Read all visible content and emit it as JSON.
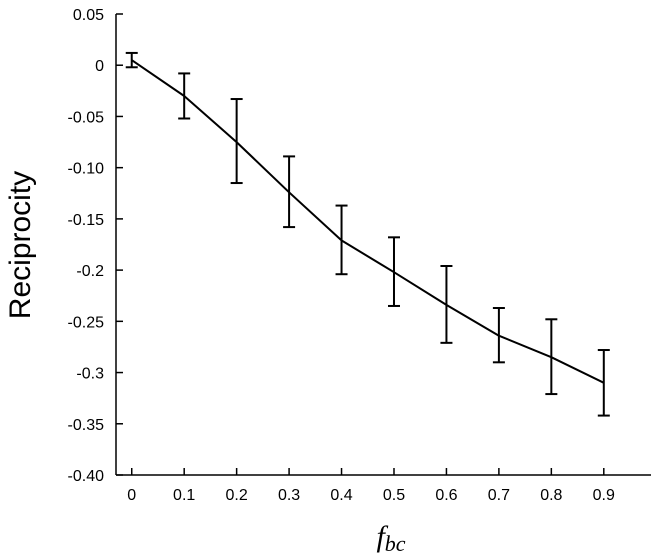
{
  "chart_data": {
    "type": "line",
    "xlabel_main": "f",
    "xlabel_sub": "bc",
    "ylabel": "Reciprocity",
    "x": [
      0,
      0.1,
      0.2,
      0.3,
      0.4,
      0.5,
      0.6,
      0.7,
      0.8,
      0.9
    ],
    "series": [
      {
        "values": [
          0.005,
          -0.03,
          -0.075,
          -0.124,
          -0.171,
          -0.202,
          -0.234,
          -0.264,
          -0.285,
          -0.31
        ],
        "error_low": [
          -0.002,
          -0.052,
          -0.115,
          -0.158,
          -0.204,
          -0.235,
          -0.271,
          -0.29,
          -0.321,
          -0.342
        ],
        "error_high": [
          0.012,
          -0.008,
          -0.033,
          -0.089,
          -0.137,
          -0.168,
          -0.196,
          -0.237,
          -0.248,
          -0.278
        ],
        "color": "#000000"
      }
    ],
    "xlim": [
      -0.03,
      0.99
    ],
    "ylim": [
      -0.4,
      0.05
    ],
    "xticks": [
      0,
      0.1,
      0.2,
      0.3,
      0.4,
      0.5,
      0.6,
      0.7,
      0.8,
      0.9
    ],
    "xtick_labels": [
      "0",
      "0.1",
      "0.2",
      "0.3",
      "0.4",
      "0.5",
      "0.6",
      "0.7",
      "0.8",
      "0.9"
    ],
    "yticks": [
      0.05,
      0,
      -0.05,
      -0.1,
      -0.15,
      -0.2,
      -0.25,
      -0.3,
      -0.35,
      -0.4
    ],
    "ytick_labels": [
      "0.05",
      "0",
      "-0.05",
      "-0.10",
      "-0.15",
      "-0.2",
      "-0.25",
      "-0.3",
      "-0.35",
      "-0.40"
    ],
    "grid": false,
    "legend": "none"
  }
}
